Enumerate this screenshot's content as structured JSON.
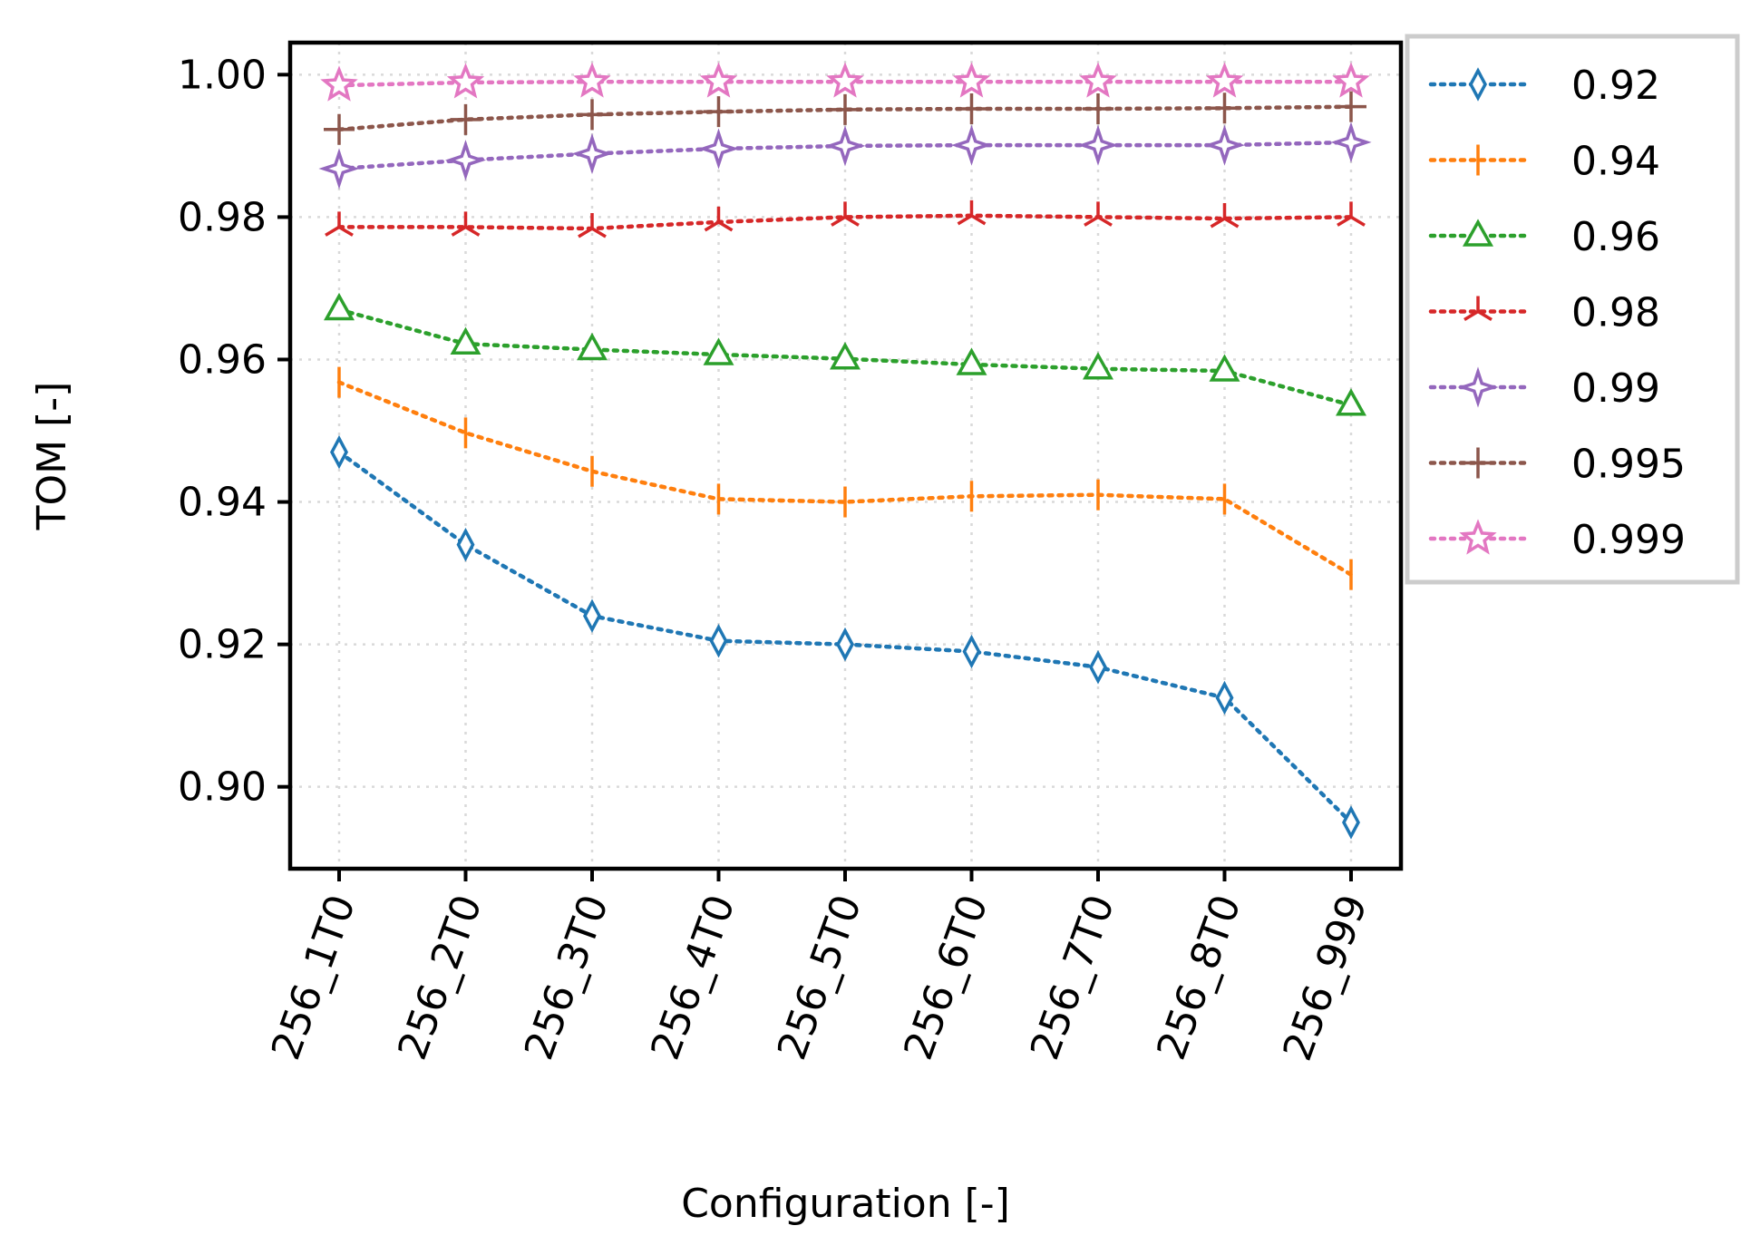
{
  "chart_data": {
    "type": "line",
    "title": "",
    "xlabel": "Configuration [-]",
    "ylabel": "TOM [-]",
    "categories": [
      "256_1T0",
      "256_2T0",
      "256_3T0",
      "256_4T0",
      "256_5T0",
      "256_6T0",
      "256_7T0",
      "256_8T0",
      "256_999"
    ],
    "ylim": [
      0.8885,
      1.0045
    ],
    "yticks": [
      "0.90",
      "0.92",
      "0.94",
      "0.96",
      "0.98",
      "1.00"
    ],
    "grid": true,
    "legend_position": "outside-right",
    "series": [
      {
        "name": "0.92",
        "color": "#1f77b4",
        "marker": "thin-diamond",
        "values": [
          0.947,
          0.934,
          0.924,
          0.9205,
          0.92,
          0.919,
          0.9168,
          0.9125,
          0.895
        ]
      },
      {
        "name": "0.94",
        "color": "#ff7f0e",
        "marker": "vline",
        "values": [
          0.9568,
          0.9497,
          0.9443,
          0.9404,
          0.94,
          0.9408,
          0.941,
          0.9404,
          0.9298
        ]
      },
      {
        "name": "0.96",
        "color": "#2ca02c",
        "marker": "triangle",
        "values": [
          0.967,
          0.9622,
          0.9614,
          0.9607,
          0.9601,
          0.9593,
          0.9587,
          0.9584,
          0.9536
        ]
      },
      {
        "name": "0.98",
        "color": "#d62728",
        "marker": "tri-up",
        "values": [
          0.9786,
          0.9786,
          0.9784,
          0.9793,
          0.98,
          0.9802,
          0.98,
          0.9798,
          0.98
        ]
      },
      {
        "name": "0.99",
        "color": "#9467bd",
        "marker": "star4",
        "values": [
          0.9868,
          0.988,
          0.9889,
          0.9896,
          0.99,
          0.9901,
          0.9901,
          0.9901,
          0.9905
        ]
      },
      {
        "name": "0.995",
        "color": "#8c564b",
        "marker": "plus",
        "values": [
          0.9923,
          0.9937,
          0.9944,
          0.9948,
          0.9951,
          0.9952,
          0.9952,
          0.9953,
          0.9955
        ]
      },
      {
        "name": "0.999",
        "color": "#e377c2",
        "marker": "star5",
        "values": [
          0.9985,
          0.9989,
          0.999,
          0.999,
          0.999,
          0.999,
          0.999,
          0.999,
          0.999
        ]
      }
    ]
  }
}
